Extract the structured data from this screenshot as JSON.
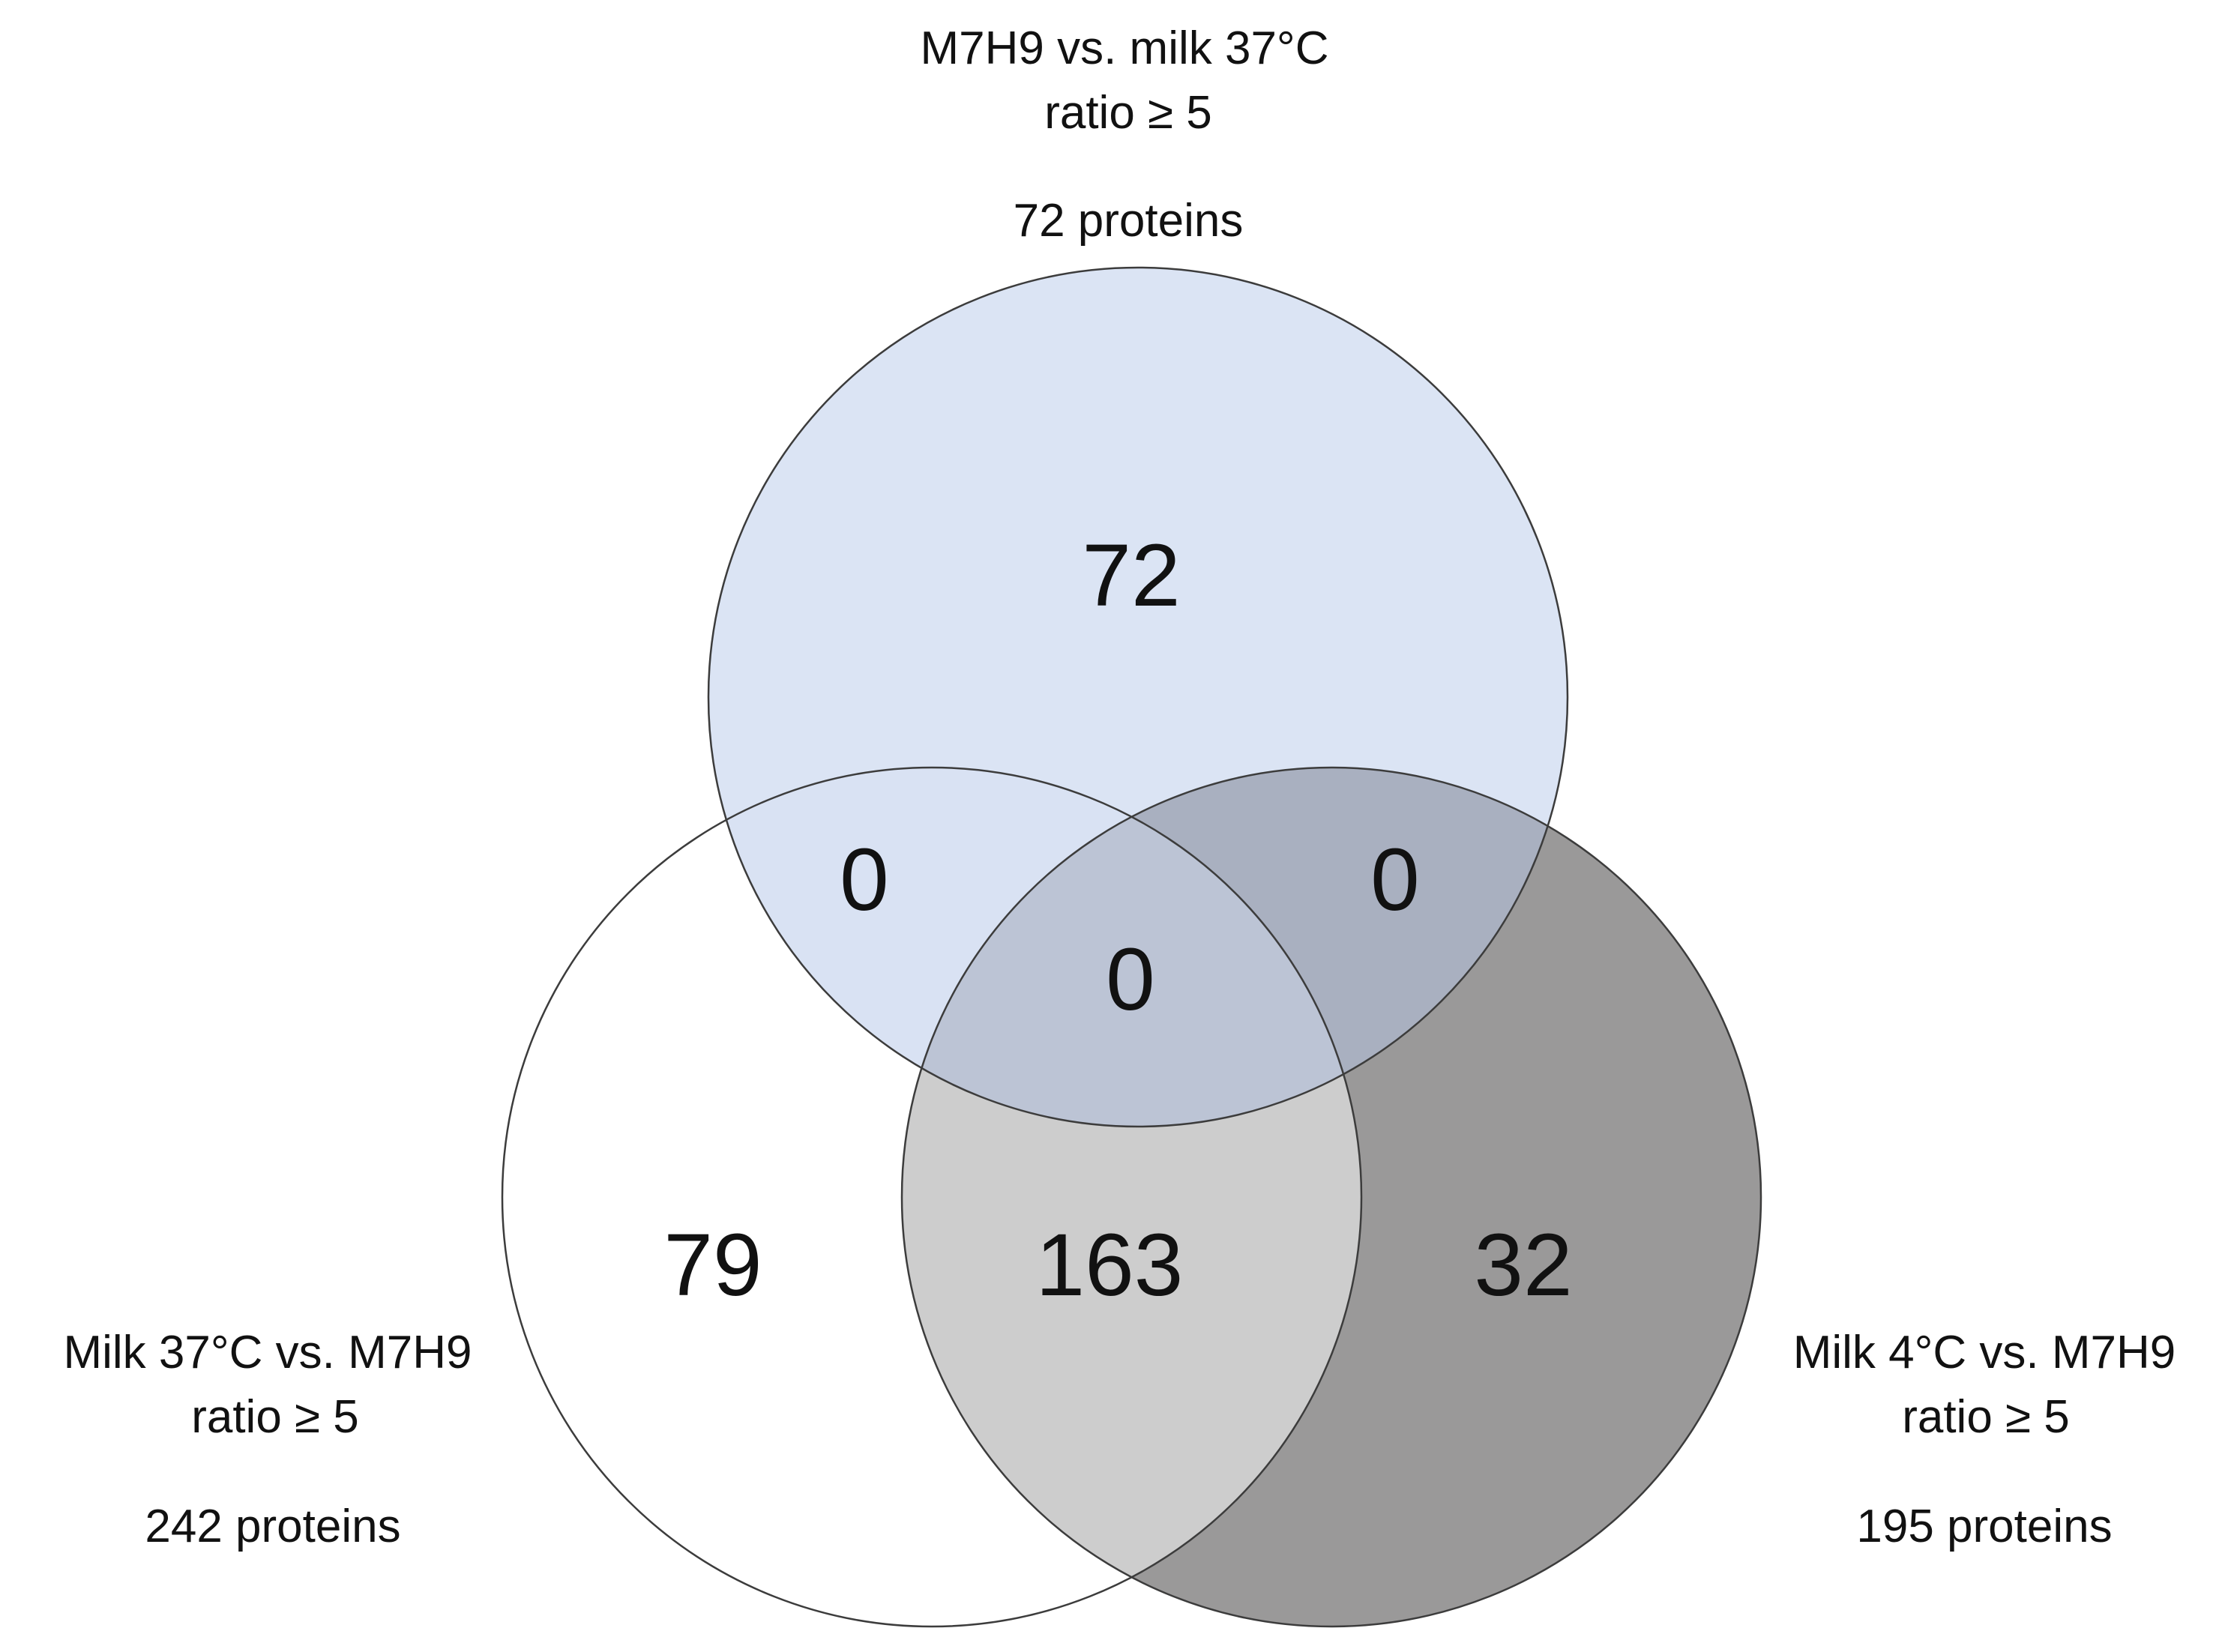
{
  "colors": {
    "set_a_fill": "#dbe4f4",
    "set_b_fill": "#ffffff",
    "set_c_fill": "#9a9999",
    "stroke": "#3c3c3c"
  },
  "sets": {
    "a": {
      "line1": "M7H9 vs. milk 37°C",
      "line2": "ratio ≥ 5",
      "total": "72 proteins"
    },
    "b": {
      "line1": "Milk 37°C vs. M7H9",
      "line2": "ratio ≥ 5",
      "total": "242 proteins"
    },
    "c": {
      "line1": "Milk 4°C vs. M7H9",
      "line2": "ratio ≥ 5",
      "total": "195 proteins"
    }
  },
  "regions": {
    "a_only": "72",
    "b_only": "79",
    "c_only": "32",
    "ab_only": "0",
    "ac_only": "0",
    "bc_only": "163",
    "abc": "0"
  }
}
